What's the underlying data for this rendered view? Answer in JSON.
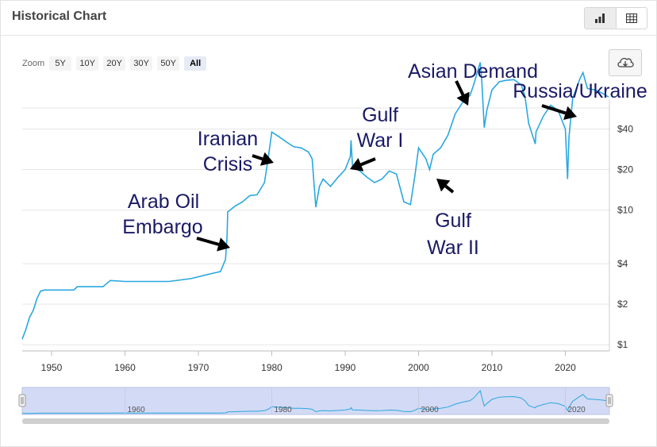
{
  "header": {
    "title": "Historical Chart"
  },
  "view_toggle": {
    "active": "chart",
    "options": [
      "chart-icon",
      "table-icon"
    ]
  },
  "zoom": {
    "label": "Zoom",
    "options": [
      "5Y",
      "10Y",
      "20Y",
      "30Y",
      "50Y",
      "All"
    ],
    "selected": "All"
  },
  "download": {
    "icon": "cloud-download-icon"
  },
  "colors": {
    "line": "#29a8e0",
    "annotation": "#1a1a66",
    "navigator_fill": "#d3daf5"
  },
  "chart_data": {
    "type": "line",
    "yscale": "log",
    "ylim": [
      0.9,
      100
    ],
    "xlim": [
      1946,
      2026
    ],
    "grid": true,
    "x_ticks": [
      "1950",
      "1960",
      "1970",
      "1980",
      "1990",
      "2000",
      "2010",
      "2020"
    ],
    "y_ticks": [
      {
        "value": 1,
        "label": "$1"
      },
      {
        "value": 2,
        "label": "$2"
      },
      {
        "value": 4,
        "label": "$4"
      },
      {
        "value": 10,
        "label": "$10"
      },
      {
        "value": 20,
        "label": "$20"
      },
      {
        "value": 40,
        "label": "$40"
      }
    ],
    "series": [
      {
        "x": [
          1946,
          1946.5,
          1947,
          1947.5,
          1948,
          1948.5,
          1949,
          1950,
          1953,
          1953.5,
          1957,
          1958,
          1960,
          1962,
          1966,
          1969,
          1970,
          1971,
          1972,
          1973,
          1973.7,
          1973.9,
          1974,
          1975,
          1976,
          1977,
          1978,
          1979,
          1979.5,
          1980,
          1981,
          1982,
          1983,
          1984,
          1985,
          1985.5,
          1986,
          1986.5,
          1987,
          1988,
          1989,
          1990,
          1990.7,
          1990.8,
          1991,
          1992,
          1993,
          1994,
          1995,
          1996,
          1997,
          1998,
          1998.9,
          1999.5,
          2000,
          2001,
          2001.5,
          2002,
          2003,
          2004,
          2005,
          2006,
          2007,
          2007.5,
          2008.4,
          2008.6,
          2008.95,
          2009.3,
          2010,
          2011,
          2012,
          2013,
          2014,
          2014.5,
          2015,
          2015.9,
          2016,
          2017,
          2018,
          2019,
          2020,
          2020.3,
          2020.5,
          2021,
          2022,
          2022.4,
          2023,
          2024,
          2025,
          2025.9
        ],
        "y": [
          1.1,
          1.3,
          1.6,
          1.8,
          2.2,
          2.5,
          2.55,
          2.55,
          2.55,
          2.7,
          2.7,
          3.0,
          2.95,
          2.95,
          2.95,
          3.1,
          3.2,
          3.3,
          3.4,
          3.5,
          4.3,
          6.3,
          9.7,
          10.7,
          11.5,
          12.8,
          13.0,
          16.0,
          24,
          38,
          35,
          32,
          29.5,
          29,
          27,
          24,
          10.5,
          15,
          17,
          15,
          17.5,
          20,
          25,
          33,
          21,
          19.5,
          17.5,
          16,
          17,
          19.5,
          18.5,
          11.5,
          11.0,
          18,
          29,
          24,
          20,
          26,
          29,
          36,
          52,
          63,
          71,
          85,
          125,
          95,
          41,
          55,
          78,
          90,
          92,
          93,
          85,
          70,
          44,
          31,
          38,
          50,
          60,
          55,
          40,
          17,
          35,
          68,
          95,
          105,
          80,
          78,
          74,
          69
        ],
        "values_note": null
      }
    ],
    "annotations": [
      {
        "text": "Arab Oil",
        "at": [
          1974,
          9.5
        ]
      },
      {
        "text": "Embargo",
        "at": [
          1974,
          9.5
        ]
      },
      {
        "text": "Iranian",
        "at": [
          1980,
          37
        ]
      },
      {
        "text": "Crisis",
        "at": [
          1980,
          37
        ]
      },
      {
        "text": "Gulf",
        "at": [
          1990.8,
          33
        ]
      },
      {
        "text": "War I",
        "at": [
          1990.8,
          33
        ]
      },
      {
        "text": "Asian Demand",
        "at": [
          2008.4,
          120
        ]
      },
      {
        "text": "Russia/Ukraine",
        "at": [
          2022.4,
          100
        ]
      },
      {
        "text": "Gulf",
        "at": [
          2003,
          28
        ]
      },
      {
        "text": "War II",
        "at": [
          2003,
          28
        ]
      }
    ],
    "navigator_ticks": [
      "1960",
      "1980",
      "2000",
      "2020"
    ]
  }
}
